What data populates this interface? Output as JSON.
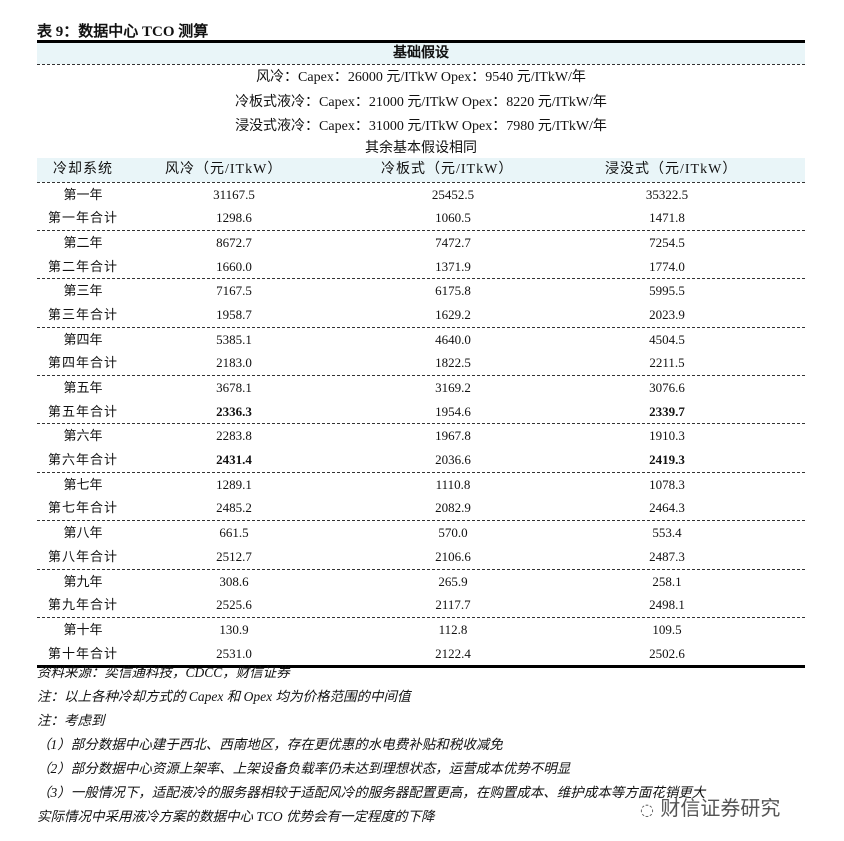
{
  "title": "表 9：数据中心 TCO 测算",
  "header": "基础假设",
  "assumptions": [
    "风冷：Capex：26000 元/ITkW  Opex：9540 元/ITkW/年",
    "冷板式液冷：Capex：21000 元/ITkW Opex：8220 元/ITkW/年",
    "浸没式液冷：Capex：31000 元/ITkW Opex：7980 元/ITkW/年",
    "其余基本假设相同"
  ],
  "columns": [
    "冷却系统",
    "风冷（元/ITkW）",
    "冷板式（元/ITkW）",
    "浸没式（元/ITkW）"
  ],
  "rows": [
    {
      "label": "第一年",
      "v": [
        "31167.5",
        "25452.5",
        "35322.5"
      ]
    },
    {
      "label": "第一年合计",
      "v": [
        "1298.6",
        "1060.5",
        "1471.8"
      ]
    },
    {
      "label": "第二年",
      "v": [
        "8672.7",
        "7472.7",
        "7254.5"
      ]
    },
    {
      "label": "第二年合计",
      "v": [
        "1660.0",
        "1371.9",
        "1774.0"
      ]
    },
    {
      "label": "第三年",
      "v": [
        "7167.5",
        "6175.8",
        "5995.5"
      ]
    },
    {
      "label": "第三年合计",
      "v": [
        "1958.7",
        "1629.2",
        "2023.9"
      ]
    },
    {
      "label": "第四年",
      "v": [
        "5385.1",
        "4640.0",
        "4504.5"
      ]
    },
    {
      "label": "第四年合计",
      "v": [
        "2183.0",
        "1822.5",
        "2211.5"
      ]
    },
    {
      "label": "第五年",
      "v": [
        "3678.1",
        "3169.2",
        "3076.6"
      ]
    },
    {
      "label": "第五年合计",
      "v": [
        "2336.3",
        "1954.6",
        "2339.7"
      ],
      "bold": [
        true,
        false,
        true
      ]
    },
    {
      "label": "第六年",
      "v": [
        "2283.8",
        "1967.8",
        "1910.3"
      ]
    },
    {
      "label": "第六年合计",
      "v": [
        "2431.4",
        "2036.6",
        "2419.3"
      ],
      "bold": [
        true,
        false,
        true
      ]
    },
    {
      "label": "第七年",
      "v": [
        "1289.1",
        "1110.8",
        "1078.3"
      ]
    },
    {
      "label": "第七年合计",
      "v": [
        "2485.2",
        "2082.9",
        "2464.3"
      ]
    },
    {
      "label": "第八年",
      "v": [
        "661.5",
        "570.0",
        "553.4"
      ]
    },
    {
      "label": "第八年合计",
      "v": [
        "2512.7",
        "2106.6",
        "2487.3"
      ]
    },
    {
      "label": "第九年",
      "v": [
        "308.6",
        "265.9",
        "258.1"
      ]
    },
    {
      "label": "第九年合计",
      "v": [
        "2525.6",
        "2117.7",
        "2498.1"
      ]
    },
    {
      "label": "第十年",
      "v": [
        "130.9",
        "112.8",
        "109.5"
      ]
    },
    {
      "label": "第十年合计",
      "v": [
        "2531.0",
        "2122.4",
        "2502.6"
      ]
    }
  ],
  "notes": [
    "资料来源：奕信通科技，CDCC，财信证券",
    "注：以上各种冷却方式的 Capex 和 Opex 均为价格范围的中间值",
    "注：考虑到",
    "（1）部分数据中心建于西北、西南地区，存在更优惠的水电费补贴和税收减免",
    "（2）部分数据中心资源上架率、上架设备负载率仍未达到理想状态，运营成本优势不明显",
    "（3）一般情况下，适配液冷的服务器相较于适配风冷的服务器配置更高，在购置成本、维护成本等方面花销更大",
    "实际情况中采用液冷方案的数据中心 TCO 优势会有一定程度的下降"
  ],
  "watermark": "财信证券研究"
}
